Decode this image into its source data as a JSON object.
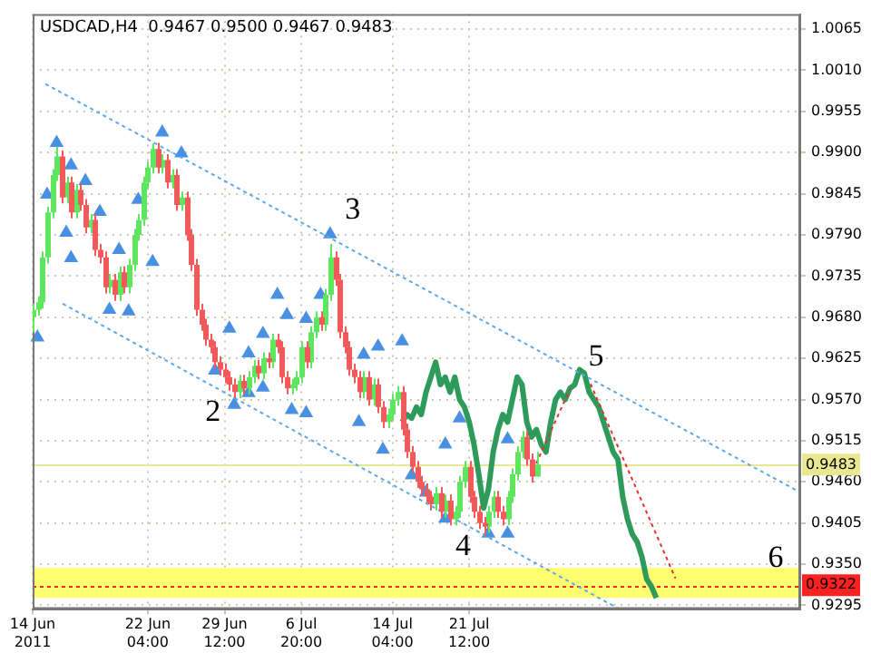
{
  "chart_data": {
    "type": "candlestick",
    "title": "USDCAD,H4  0.9467 0.9500 0.9467 0.9483",
    "categories": [
      "14 Jun 2011",
      null,
      null,
      null,
      null,
      null,
      null,
      null,
      null,
      null,
      null,
      null,
      null,
      null,
      null,
      null,
      null,
      null,
      null,
      null,
      null,
      null,
      null,
      null,
      "22 Jun 04:00",
      null,
      null,
      null,
      null,
      null,
      null,
      null,
      null,
      null,
      null,
      null,
      null,
      null,
      null,
      null,
      "29 Jun 12:00",
      null,
      null,
      null,
      null,
      null,
      null,
      null,
      null,
      null,
      null,
      null,
      null,
      null,
      null,
      null,
      "6 Jul 20:00",
      null,
      null,
      null,
      null,
      null,
      null,
      null,
      null,
      null,
      null,
      null,
      null,
      null,
      null,
      null,
      null,
      null,
      null,
      "14 Jul 04:00",
      null,
      null,
      null,
      null,
      null,
      null,
      null,
      null,
      null,
      null,
      null,
      null,
      null,
      null,
      null,
      "21 Jul 12:00",
      null,
      null,
      null,
      null,
      null,
      null,
      null,
      null,
      null,
      null,
      null,
      null,
      null,
      null,
      null,
      null,
      null,
      null,
      null,
      null,
      null,
      null,
      null,
      null,
      null,
      null,
      null,
      null,
      null,
      null,
      null,
      null,
      null,
      null,
      null,
      null,
      null,
      null,
      null,
      null,
      null,
      null,
      null,
      null,
      null,
      null,
      null,
      null,
      null,
      null,
      null,
      null,
      null,
      null,
      null,
      null,
      null,
      null,
      null,
      null,
      null,
      null,
      null,
      null,
      null,
      null,
      null,
      null,
      null
    ],
    "ylim": [
      0.929,
      1.0085
    ],
    "yticks": [
      {
        "value": 1.0065,
        "label": "1.0065"
      },
      {
        "value": 1.001,
        "label": "1.0010"
      },
      {
        "value": 0.9955,
        "label": "0.9955"
      },
      {
        "value": 0.99,
        "label": "0.9900"
      },
      {
        "value": 0.9845,
        "label": "0.9845"
      },
      {
        "value": 0.979,
        "label": "0.9790"
      },
      {
        "value": 0.9735,
        "label": "0.9735"
      },
      {
        "value": 0.968,
        "label": "0.9680"
      },
      {
        "value": 0.9625,
        "label": "0.9625"
      },
      {
        "value": 0.957,
        "label": "0.9570"
      },
      {
        "value": 0.9515,
        "label": "0.9515"
      },
      {
        "value": 0.946,
        "label": "0.9460"
      },
      {
        "value": 0.9405,
        "label": "0.9405"
      },
      {
        "value": 0.935,
        "label": "0.9350"
      },
      {
        "value": 0.9295,
        "label": "0.9295"
      }
    ],
    "grid": true,
    "series": [
      {
        "type": "candlestick",
        "color": "#5ee65e",
        "ohlc": [
          [
            0.968,
            0.9698,
            0.966,
            0.969
          ],
          [
            0.969,
            0.9708,
            0.9682,
            0.97
          ],
          [
            0.97,
            0.9768,
            0.9692,
            0.976
          ],
          [
            0.976,
            0.9828,
            0.9752,
            0.982
          ],
          [
            0.982,
            0.9878,
            0.9812,
            0.987
          ],
          [
            0.987,
            0.9908,
            0.9862,
            0.9895
          ],
          null,
          [
            0.984,
            0.9868,
            0.9832,
            0.986
          ],
          null,
          [
            0.982,
            0.9858,
            0.9812,
            0.985
          ],
          null,
          null,
          [
            0.98,
            0.9818,
            0.9792,
            0.981
          ],
          null,
          null,
          null,
          [
            0.972,
            0.9738,
            0.9712,
            0.973
          ],
          null,
          [
            0.971,
            0.9748,
            0.9702,
            0.974
          ],
          null,
          [
            0.972,
            0.9758,
            0.9712,
            0.975
          ],
          [
            0.975,
            0.9798,
            0.9742,
            0.979
          ],
          [
            0.979,
            0.9818,
            0.9782,
            0.981
          ],
          [
            0.981,
            0.9868,
            0.9802,
            0.986
          ],
          [
            0.986,
            0.9888,
            0.9852,
            0.988
          ],
          [
            0.988,
            0.9912,
            0.9872,
            0.9905
          ],
          null,
          [
            0.988,
            0.9898,
            0.9872,
            0.989
          ],
          null,
          [
            0.986,
            0.9878,
            0.9852,
            0.987
          ],
          null,
          [
            0.983,
            0.9848,
            0.9822,
            0.984
          ],
          null,
          null,
          null,
          null,
          null,
          null,
          null,
          null,
          null,
          null,
          null,
          [
            0.958,
            0.9603,
            0.9572,
            0.9595
          ],
          null,
          [
            0.9585,
            0.9608,
            0.9577,
            0.96
          ],
          [
            0.96,
            0.9623,
            0.9592,
            0.9615
          ],
          null,
          [
            0.9605,
            0.9633,
            0.9597,
            0.9625
          ],
          null,
          [
            0.962,
            0.9658,
            0.9612,
            0.965
          ],
          null,
          null,
          null,
          [
            0.9585,
            0.9598,
            0.9577,
            0.959
          ],
          [
            0.959,
            0.9608,
            0.9582,
            0.96
          ],
          [
            0.96,
            0.9648,
            0.9592,
            0.964
          ],
          null,
          [
            0.962,
            0.9668,
            0.9612,
            0.966
          ],
          [
            0.966,
            0.9688,
            0.9652,
            0.968
          ],
          null,
          [
            0.967,
            0.9718,
            0.9662,
            0.971
          ],
          [
            0.971,
            0.9778,
            0.9702,
            0.976
          ],
          null,
          null,
          null,
          null,
          null,
          null,
          [
            0.958,
            0.9608,
            0.9572,
            0.96
          ],
          null,
          [
            0.957,
            0.9598,
            0.9562,
            0.959
          ],
          null,
          null,
          [
            0.954,
            0.9558,
            0.9532,
            0.955
          ],
          [
            0.955,
            0.9578,
            0.9542,
            0.957
          ],
          [
            0.957,
            0.9588,
            0.9562,
            0.958
          ],
          null,
          null,
          null,
          null,
          null,
          null,
          null,
          [
            0.943,
            0.9453,
            0.9422,
            0.9445
          ],
          null,
          [
            0.942,
            0.9443,
            0.9412,
            0.9435
          ],
          null,
          [
            0.941,
            0.9428,
            0.9402,
            0.942
          ],
          [
            0.942,
            0.9468,
            0.9412,
            0.946
          ],
          [
            0.946,
            0.9488,
            0.9452,
            0.948
          ],
          null,
          null,
          null,
          null,
          [
            0.94,
            0.9428,
            0.9392,
            0.942
          ],
          [
            0.942,
            0.9448,
            0.9412,
            0.944
          ],
          null,
          null,
          [
            0.941,
            0.9448,
            0.9402,
            0.944
          ],
          [
            0.944,
            0.9478,
            0.9432,
            0.947
          ],
          [
            0.947,
            0.9508,
            0.9462,
            0.95
          ],
          [
            0.95,
            0.9528,
            0.9492,
            0.952
          ],
          null,
          null,
          [
            0.9467,
            0.95,
            0.9467,
            0.9483
          ],
          null,
          null,
          null,
          null,
          null,
          null,
          null,
          null,
          null,
          null,
          null,
          null,
          null,
          null,
          null,
          null,
          null,
          null,
          null,
          null,
          null,
          null,
          null,
          null,
          null,
          null,
          null,
          null,
          null,
          null,
          null,
          null,
          null,
          null,
          null,
          null,
          null,
          null,
          null,
          null,
          null,
          null,
          null,
          null,
          null,
          null,
          null,
          null,
          null,
          null,
          null,
          null,
          null,
          null,
          null
        ]
      },
      {
        "type": "candlestick",
        "color": "#f05a5a",
        "ohlc": [
          null,
          null,
          null,
          null,
          null,
          null,
          [
            0.9895,
            0.9903,
            0.9832,
            0.984
          ],
          null,
          [
            0.986,
            0.9868,
            0.9812,
            0.982
          ],
          null,
          [
            0.985,
            0.9858,
            0.9822,
            0.983
          ],
          [
            0.983,
            0.9838,
            0.9792,
            0.98
          ],
          null,
          [
            0.981,
            0.9818,
            0.9762,
            0.977
          ],
          [
            0.977,
            0.9778,
            0.9752,
            0.976
          ],
          [
            0.976,
            0.9768,
            0.9712,
            0.972
          ],
          null,
          [
            0.973,
            0.9738,
            0.9702,
            0.971
          ],
          null,
          [
            0.974,
            0.9748,
            0.9712,
            0.972
          ],
          null,
          null,
          null,
          null,
          null,
          null,
          [
            0.9905,
            0.9913,
            0.9872,
            0.988
          ],
          null,
          [
            0.989,
            0.9898,
            0.9852,
            0.986
          ],
          null,
          [
            0.987,
            0.9878,
            0.9822,
            0.983
          ],
          null,
          [
            0.984,
            0.9848,
            0.9782,
            0.979
          ],
          [
            0.979,
            0.9798,
            0.9742,
            0.975
          ],
          [
            0.975,
            0.9758,
            0.9682,
            0.969
          ],
          [
            0.969,
            0.9698,
            0.9662,
            0.967
          ],
          [
            0.967,
            0.9678,
            0.9642,
            0.965
          ],
          [
            0.965,
            0.9658,
            0.9632,
            0.964
          ],
          [
            0.964,
            0.9648,
            0.9612,
            0.962
          ],
          [
            0.962,
            0.9628,
            0.9602,
            0.961
          ],
          [
            0.961,
            0.9618,
            0.9592,
            0.96
          ],
          [
            0.96,
            0.9608,
            0.9582,
            0.959
          ],
          [
            0.959,
            0.9598,
            0.9572,
            0.958
          ],
          null,
          [
            0.9595,
            0.9603,
            0.9577,
            0.9585
          ],
          null,
          null,
          [
            0.9615,
            0.9623,
            0.9597,
            0.9605
          ],
          null,
          [
            0.9625,
            0.9633,
            0.9612,
            0.962
          ],
          null,
          [
            0.965,
            0.9658,
            0.9632,
            0.964
          ],
          [
            0.964,
            0.9648,
            0.9592,
            0.96
          ],
          [
            0.96,
            0.9608,
            0.9577,
            0.9585
          ],
          null,
          null,
          null,
          [
            0.964,
            0.9648,
            0.9612,
            0.962
          ],
          null,
          null,
          [
            0.968,
            0.9688,
            0.9662,
            0.967
          ],
          null,
          null,
          [
            0.976,
            0.9768,
            0.9722,
            0.973
          ],
          [
            0.973,
            0.9738,
            0.9652,
            0.966
          ],
          [
            0.966,
            0.9668,
            0.9632,
            0.964
          ],
          [
            0.964,
            0.9648,
            0.9602,
            0.961
          ],
          [
            0.961,
            0.9618,
            0.9592,
            0.96
          ],
          [
            0.96,
            0.9608,
            0.9572,
            0.958
          ],
          null,
          [
            0.96,
            0.9608,
            0.9562,
            0.957
          ],
          null,
          [
            0.959,
            0.9598,
            0.9552,
            0.956
          ],
          [
            0.956,
            0.9568,
            0.9532,
            0.954
          ],
          null,
          null,
          null,
          [
            0.958,
            0.9588,
            0.9522,
            0.953
          ],
          [
            0.953,
            0.9538,
            0.9492,
            0.95
          ],
          [
            0.95,
            0.9508,
            0.9472,
            0.948
          ],
          [
            0.948,
            0.9488,
            0.9452,
            0.946
          ],
          [
            0.946,
            0.9468,
            0.9442,
            0.945
          ],
          [
            0.945,
            0.9458,
            0.9432,
            0.944
          ],
          [
            0.944,
            0.9448,
            0.9422,
            0.943
          ],
          null,
          [
            0.9445,
            0.9453,
            0.9412,
            0.942
          ],
          null,
          [
            0.9435,
            0.9443,
            0.9402,
            0.941
          ],
          null,
          null,
          null,
          [
            0.948,
            0.9488,
            0.9432,
            0.944
          ],
          [
            0.944,
            0.9448,
            0.9412,
            0.942
          ],
          [
            0.942,
            0.9428,
            0.9397,
            0.9405
          ],
          [
            0.9405,
            0.9413,
            0.9388,
            0.94
          ],
          null,
          null,
          [
            0.944,
            0.9448,
            0.9412,
            0.942
          ],
          [
            0.942,
            0.9428,
            0.9402,
            0.941
          ],
          null,
          null,
          null,
          null,
          [
            0.952,
            0.9528,
            0.9482,
            0.949
          ],
          [
            0.949,
            0.9498,
            0.9459,
            0.9467
          ],
          null,
          null,
          null,
          null,
          null,
          null,
          null,
          null,
          null,
          null,
          null,
          null,
          null,
          null,
          null,
          null,
          null,
          null,
          null,
          null,
          null,
          null,
          null,
          null,
          null,
          null,
          null,
          null,
          null,
          null,
          null,
          null,
          null,
          null,
          null,
          null,
          null,
          null,
          null,
          null,
          null,
          null,
          null,
          null,
          null,
          null,
          null,
          null,
          null,
          null,
          null,
          null,
          null,
          null,
          null,
          null
        ]
      },
      {
        "type": "line",
        "color": "#2e9b5b",
        "values": [
          null,
          null,
          null,
          null,
          null,
          null,
          null,
          null,
          null,
          null,
          null,
          null,
          null,
          null,
          null,
          null,
          null,
          null,
          null,
          null,
          null,
          null,
          null,
          null,
          null,
          null,
          null,
          null,
          null,
          null,
          null,
          null,
          null,
          null,
          null,
          null,
          null,
          null,
          null,
          null,
          null,
          null,
          null,
          null,
          null,
          null,
          null,
          null,
          null,
          null,
          null,
          null,
          null,
          null,
          null,
          null,
          null,
          null,
          null,
          null,
          null,
          null,
          null,
          null,
          null,
          null,
          null,
          null,
          null,
          null,
          null,
          null,
          null,
          null,
          null,
          null,
          null,
          0.954,
          0.955,
          0.9545,
          0.956,
          0.955,
          0.958,
          0.96,
          0.962,
          0.959,
          0.96,
          0.958,
          0.96,
          0.957,
          0.956,
          0.954,
          0.951,
          0.947,
          0.9425,
          0.945,
          0.95,
          0.953,
          0.955,
          0.954,
          0.957,
          0.96,
          0.959,
          0.954,
          0.952,
          0.953,
          0.951,
          0.95,
          0.954,
          0.957,
          0.958,
          0.957,
          0.9585,
          0.959,
          0.961,
          0.9605,
          0.958,
          0.957,
          0.956,
          0.954,
          0.952,
          0.95,
          0.949,
          0.944,
          0.941,
          0.939,
          0.938,
          0.936,
          0.933,
          0.932,
          0.9305,
          null,
          null,
          null,
          null,
          null,
          null,
          null,
          null,
          null,
          null,
          null,
          null,
          null,
          null,
          null,
          null,
          null,
          null,
          null,
          null,
          null,
          null,
          null,
          null,
          null,
          null,
          null,
          null,
          null,
          null
        ]
      },
      {
        "type": "line",
        "color": "#5aa8f0",
        "line_style": "dashed",
        "values": [
          null,
          null,
          0.9994,
          null,
          null,
          null,
          null,
          null,
          null,
          null,
          null,
          null,
          null,
          null,
          null,
          null,
          null,
          null,
          null,
          null,
          null,
          null,
          null,
          null,
          null,
          null,
          null,
          null,
          null,
          null,
          null,
          null,
          null,
          null,
          null,
          null,
          null,
          null,
          null,
          null,
          null,
          null,
          null,
          null,
          null,
          null,
          null,
          null,
          null,
          null,
          null,
          null,
          null,
          null,
          null,
          null,
          null,
          null,
          null,
          null,
          null,
          null,
          null,
          null,
          null,
          null,
          null,
          null,
          null,
          null,
          null,
          null,
          null,
          null,
          null,
          null,
          null,
          null,
          null,
          null,
          null,
          null,
          null,
          null,
          null,
          null,
          null,
          null,
          null,
          null,
          null,
          null,
          null,
          null,
          null,
          null,
          null,
          null,
          null,
          null,
          null,
          null,
          null,
          null,
          null,
          null,
          null,
          null,
          null,
          null,
          null,
          null,
          null,
          null,
          null,
          null,
          null,
          null,
          null,
          null,
          null,
          null,
          null,
          null,
          null,
          null,
          null,
          null,
          null,
          null,
          null,
          null,
          null,
          null,
          null,
          null,
          null,
          null,
          null,
          null,
          null,
          null,
          null,
          null,
          null,
          null,
          null,
          null,
          null,
          null,
          null,
          null,
          null,
          null,
          null,
          null,
          null,
          null,
          null,
          null,
          0.9446
        ]
      },
      {
        "type": "line",
        "color": "#5aa8f0",
        "line_style": "dashed",
        "values": [
          null,
          null,
          null,
          null,
          null,
          null,
          0.9699,
          null,
          null,
          null,
          null,
          null,
          null,
          null,
          null,
          null,
          null,
          null,
          null,
          null,
          null,
          null,
          null,
          null,
          null,
          null,
          null,
          null,
          null,
          null,
          null,
          null,
          null,
          null,
          null,
          null,
          null,
          null,
          null,
          null,
          null,
          null,
          null,
          null,
          null,
          null,
          null,
          null,
          null,
          null,
          null,
          null,
          null,
          null,
          null,
          null,
          null,
          null,
          null,
          null,
          null,
          null,
          null,
          null,
          null,
          null,
          null,
          null,
          null,
          null,
          null,
          null,
          null,
          null,
          null,
          null,
          null,
          null,
          null,
          null,
          null,
          null,
          null,
          null,
          null,
          null,
          null,
          null,
          null,
          null,
          null,
          null,
          null,
          null,
          null,
          null,
          null,
          null,
          null,
          null,
          null,
          null,
          null,
          null,
          null,
          null,
          null,
          null,
          null,
          null,
          null,
          null,
          null,
          null,
          null,
          null,
          null,
          null,
          null,
          null,
          null,
          null,
          0.9291,
          null,
          null,
          null,
          null,
          null,
          null,
          null,
          null,
          null,
          null,
          null,
          null,
          null,
          null,
          null,
          null,
          null,
          null,
          null,
          null,
          null,
          null,
          null,
          null,
          null,
          null,
          null,
          null,
          null,
          null,
          null,
          null,
          null,
          null,
          null,
          null,
          null,
          null
        ]
      },
      {
        "type": "line",
        "color": "#e83030",
        "line_style": "dashed",
        "values": [
          null,
          null,
          null,
          null,
          null,
          null,
          null,
          null,
          null,
          null,
          null,
          null,
          null,
          null,
          null,
          null,
          null,
          null,
          null,
          null,
          null,
          null,
          null,
          null,
          null,
          null,
          null,
          null,
          null,
          null,
          null,
          null,
          null,
          null,
          null,
          null,
          null,
          null,
          null,
          null,
          null,
          null,
          null,
          null,
          null,
          null,
          null,
          null,
          null,
          null,
          null,
          null,
          null,
          null,
          null,
          null,
          null,
          null,
          null,
          null,
          null,
          null,
          null,
          null,
          null,
          null,
          null,
          null,
          null,
          null,
          null,
          null,
          null,
          null,
          null,
          null,
          null,
          null,
          null,
          null,
          null,
          null,
          null,
          null,
          null,
          null,
          null,
          null,
          null,
          null,
          null,
          null,
          null,
          null,
          null,
          null,
          null,
          null,
          null,
          null,
          null,
          null,
          null,
          null,
          0.9471,
          null,
          null,
          null,
          null,
          null,
          null,
          null,
          0.9584,
          null,
          null,
          null,
          null,
          null,
          null,
          null,
          null,
          null,
          null,
          null,
          null,
          null,
          null,
          null,
          null,
          null,
          null,
          null,
          null,
          null,
          null,
          null,
          null,
          null,
          null,
          null,
          null,
          null,
          null,
          null,
          null,
          null,
          null,
          null,
          null,
          null,
          null,
          null,
          null,
          null,
          null,
          null,
          null,
          null,
          null,
          null,
          null
        ]
      },
      {
        "type": "line",
        "color": "#e83030",
        "line_style": "dashed",
        "values": [
          null,
          null,
          null,
          null,
          null,
          null,
          null,
          null,
          null,
          null,
          null,
          null,
          null,
          null,
          null,
          null,
          null,
          null,
          null,
          null,
          null,
          null,
          null,
          null,
          null,
          null,
          null,
          null,
          null,
          null,
          null,
          null,
          null,
          null,
          null,
          null,
          null,
          null,
          null,
          null,
          null,
          null,
          null,
          null,
          null,
          null,
          null,
          null,
          null,
          null,
          null,
          null,
          null,
          null,
          null,
          null,
          null,
          null,
          null,
          null,
          null,
          null,
          null,
          null,
          null,
          null,
          null,
          null,
          null,
          null,
          null,
          null,
          null,
          null,
          null,
          null,
          null,
          null,
          null,
          null,
          null,
          null,
          null,
          null,
          null,
          null,
          null,
          null,
          null,
          null,
          null,
          null,
          null,
          null,
          null,
          null,
          null,
          null,
          null,
          null,
          null,
          null,
          null,
          null,
          null,
          null,
          null,
          null,
          null,
          null,
          null,
          null,
          null,
          null,
          null,
          null,
          0.9595,
          null,
          null,
          null,
          null,
          null,
          null,
          null,
          null,
          null,
          null,
          null,
          null,
          null,
          null,
          null,
          null,
          null,
          0.9331,
          null,
          null,
          null,
          null,
          null,
          null,
          null,
          null,
          null,
          null,
          null,
          null,
          null,
          null,
          null,
          null,
          null,
          null,
          null,
          null,
          null,
          null,
          null,
          null,
          null,
          null
        ]
      },
      {
        "type": "scatter",
        "marker": "triangle",
        "color": "#4a90e2",
        "values": [
          null,
          null,
          null,
          0.9844,
          null,
          0.9913,
          null,
          null,
          0.9883,
          null,
          null,
          0.9862,
          null,
          null,
          0.9821,
          null,
          null,
          null,
          0.977,
          null,
          null,
          null,
          0.9837,
          null,
          null,
          null,
          null,
          0.9927,
          null,
          null,
          null,
          0.9899,
          null,
          null,
          null,
          null,
          null,
          null,
          null,
          null,
          null,
          0.9665,
          null,
          null,
          null,
          0.9632,
          null,
          null,
          0.9658,
          null,
          null,
          0.971,
          null,
          0.9683,
          null,
          null,
          null,
          0.9678,
          null,
          null,
          0.971,
          null,
          0.9791,
          null,
          null,
          null,
          null,
          null,
          null,
          0.963,
          null,
          null,
          0.9641,
          null,
          null,
          null,
          null,
          0.9648,
          null,
          null,
          null,
          null,
          null,
          null,
          null,
          null,
          0.951,
          null,
          null,
          0.9545,
          null,
          null,
          null,
          null,
          null,
          null,
          null,
          null,
          null,
          0.9517,
          null,
          null,
          null,
          null,
          null,
          null,
          null,
          null,
          null,
          null,
          null,
          null,
          null,
          null,
          null,
          null,
          null,
          null,
          null,
          null,
          null,
          null,
          null,
          null,
          null,
          null,
          null,
          null,
          null,
          null,
          null,
          null,
          null,
          null,
          null,
          null,
          null,
          null,
          null,
          null,
          null,
          null,
          null,
          null,
          null,
          null,
          null,
          null,
          null,
          null,
          null,
          null,
          null,
          null,
          null,
          null,
          null,
          null,
          null,
          null,
          null
        ]
      },
      {
        "type": "scatter",
        "marker": "triangle",
        "color": "#4a90e2",
        "values": [
          null,
          0.9653,
          null,
          null,
          null,
          null,
          null,
          0.9793,
          0.9759,
          null,
          null,
          null,
          null,
          null,
          null,
          null,
          0.969,
          null,
          null,
          null,
          0.9688,
          null,
          null,
          null,
          null,
          0.9754,
          null,
          null,
          null,
          null,
          null,
          null,
          null,
          null,
          null,
          null,
          null,
          null,
          0.9609,
          null,
          null,
          null,
          0.9563,
          null,
          null,
          0.9579,
          null,
          null,
          0.9586,
          null,
          null,
          null,
          null,
          null,
          0.9556,
          null,
          null,
          0.9552,
          null,
          null,
          null,
          null,
          null,
          null,
          null,
          null,
          null,
          null,
          0.954,
          null,
          null,
          null,
          null,
          0.9503,
          null,
          null,
          null,
          null,
          null,
          0.9469,
          null,
          null,
          0.9446,
          null,
          null,
          null,
          0.9411,
          null,
          null,
          null,
          null,
          null,
          null,
          null,
          null,
          0.9391,
          null,
          null,
          null,
          0.9391,
          null,
          null,
          null,
          null,
          null,
          null,
          null,
          null,
          null,
          null,
          null,
          null,
          null,
          null,
          null,
          null,
          null,
          null,
          null,
          null,
          null,
          null,
          null,
          null,
          null,
          null,
          null,
          null,
          null,
          null,
          null,
          null,
          null,
          null,
          null,
          null,
          null,
          null,
          null,
          null,
          null,
          null,
          null,
          null,
          null,
          null,
          null,
          null,
          null,
          null,
          null,
          null,
          null,
          null,
          null,
          null,
          null,
          null,
          null,
          null,
          null
        ]
      }
    ],
    "ref_lines": [
      {
        "axis": "y",
        "value": 0.9322,
        "label": "0.9322",
        "color": "#ff2020",
        "line_style": "dashed"
      },
      {
        "axis": "y",
        "value": 0.9483,
        "label": "0.9483",
        "color": "#e8e890",
        "line_style": "solid"
      }
    ],
    "bands": [
      {
        "axis": "y",
        "from": 0.9305,
        "to": 0.9345,
        "color": "#ffff70"
      }
    ],
    "annotations": [
      "2",
      "3",
      "4",
      "5",
      "6"
    ]
  }
}
